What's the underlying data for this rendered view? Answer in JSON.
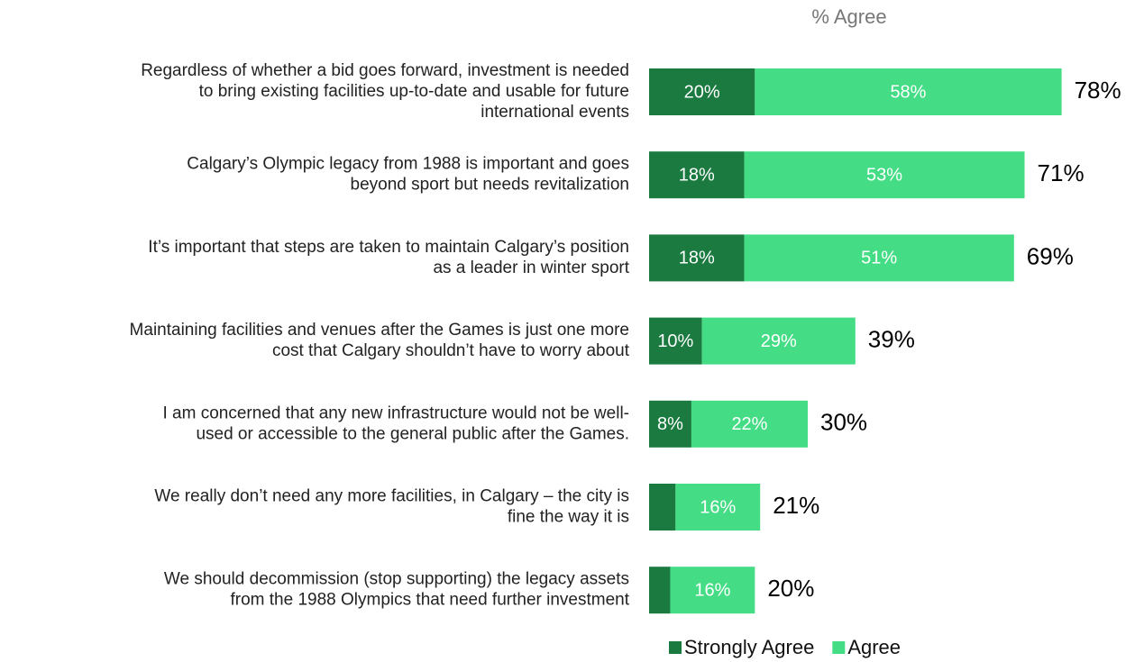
{
  "chart_data": {
    "type": "stacked_bar_horizontal",
    "header": "% Agree",
    "categories": [
      [
        "Regardless of whether a bid goes forward, investment is needed",
        "to bring existing facilities up-to-date and usable for future",
        "international events"
      ],
      [
        "Calgary’s Olympic legacy from 1988 is important and goes",
        "beyond sport but needs revitalization"
      ],
      [
        "It’s important that steps are taken to maintain Calgary’s position",
        "as a leader in winter sport"
      ],
      [
        "Maintaining facilities and venues after the Games is just one more",
        "cost that Calgary shouldn’t have to worry about"
      ],
      [
        "I am concerned that any new infrastructure would not be well-",
        "used or accessible to the general public after the Games."
      ],
      [
        "We really don’t need any more facilities, in Calgary – the city is",
        "fine the way it is"
      ],
      [
        "We should decommission (stop supporting) the legacy assets",
        "from the 1988 Olympics that need further investment"
      ]
    ],
    "series": [
      {
        "name": "Strongly Agree",
        "color": "#1a7a40",
        "values": [
          20,
          18,
          18,
          10,
          8,
          5,
          4
        ],
        "value_labels": [
          "20%",
          "18%",
          "18%",
          "10%",
          "8%",
          null,
          null
        ]
      },
      {
        "name": "Agree",
        "color": "#44dd85",
        "values": [
          58,
          53,
          51,
          29,
          22,
          16,
          16
        ],
        "value_labels": [
          "58%",
          "53%",
          "51%",
          "29%",
          "22%",
          "16%",
          "16%"
        ]
      }
    ],
    "totals": [
      78,
      71,
      69,
      39,
      30,
      21,
      20
    ],
    "total_labels": [
      "78%",
      "71%",
      "69%",
      "39%",
      "30%",
      "21%",
      "20%"
    ],
    "xlim": [
      0,
      90
    ],
    "legend": "bottom"
  }
}
